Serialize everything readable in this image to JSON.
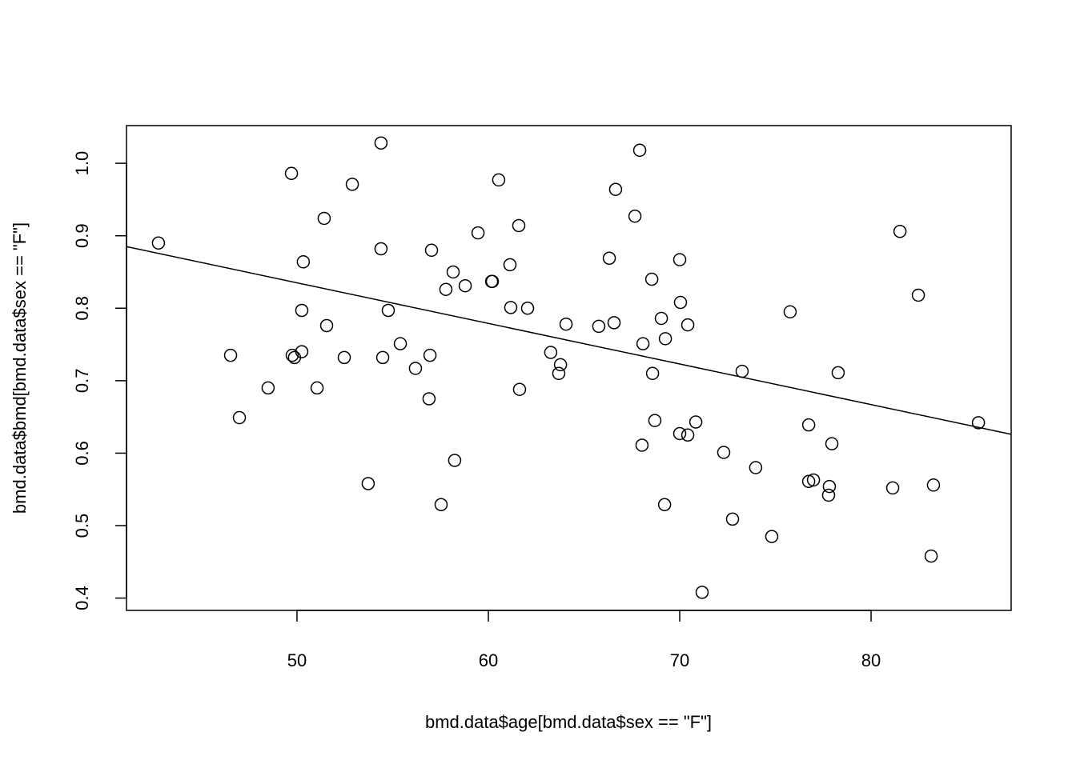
{
  "chart_data": {
    "type": "scatter",
    "title": "",
    "xlabel": "bmd.data$age[bmd.data$sex == \"F\"]",
    "ylabel": "bmd.data$bmd[bmd.data$sex == \"F\"]",
    "xlim": [
      41.09,
      87.32
    ],
    "ylim": [
      0.383,
      1.052
    ],
    "xticks": [
      50,
      60,
      70,
      80
    ],
    "xtick_labels": [
      "50",
      "60",
      "70",
      "80"
    ],
    "yticks": [
      0.4,
      0.5,
      0.6,
      0.7,
      0.8,
      0.9,
      1.0
    ],
    "ytick_labels": [
      "0.4",
      "0.5",
      "0.6",
      "0.7",
      "0.8",
      "0.9",
      "1.0"
    ],
    "grid": false,
    "marker": "open-circle",
    "regression_line": {
      "x": [
        41.09,
        87.32
      ],
      "y": [
        0.885,
        0.626
      ]
    },
    "points": [
      [
        42.76,
        0.89
      ],
      [
        46.53,
        0.735
      ],
      [
        46.99,
        0.649
      ],
      [
        48.49,
        0.69
      ],
      [
        49.71,
        0.986
      ],
      [
        49.75,
        0.735
      ],
      [
        49.87,
        0.732
      ],
      [
        50.25,
        0.74
      ],
      [
        50.25,
        0.797
      ],
      [
        50.33,
        0.864
      ],
      [
        51.05,
        0.69
      ],
      [
        51.42,
        0.924
      ],
      [
        51.55,
        0.776
      ],
      [
        52.47,
        0.732
      ],
      [
        52.89,
        0.971
      ],
      [
        53.72,
        0.558
      ],
      [
        54.39,
        1.028
      ],
      [
        54.39,
        0.882
      ],
      [
        54.48,
        0.732
      ],
      [
        54.77,
        0.797
      ],
      [
        55.4,
        0.751
      ],
      [
        56.19,
        0.717
      ],
      [
        56.9,
        0.675
      ],
      [
        56.95,
        0.735
      ],
      [
        57.03,
        0.88
      ],
      [
        57.53,
        0.529
      ],
      [
        57.78,
        0.826
      ],
      [
        58.16,
        0.85
      ],
      [
        58.24,
        0.59
      ],
      [
        58.79,
        0.831
      ],
      [
        59.46,
        0.904
      ],
      [
        60.17,
        0.837
      ],
      [
        60.21,
        0.837
      ],
      [
        60.54,
        0.977
      ],
      [
        61.13,
        0.86
      ],
      [
        61.17,
        0.801
      ],
      [
        61.59,
        0.914
      ],
      [
        61.63,
        0.688
      ],
      [
        62.05,
        0.8
      ],
      [
        63.26,
        0.739
      ],
      [
        63.68,
        0.71
      ],
      [
        63.77,
        0.722
      ],
      [
        64.06,
        0.778
      ],
      [
        65.77,
        0.775
      ],
      [
        66.32,
        0.869
      ],
      [
        66.57,
        0.78
      ],
      [
        66.65,
        0.964
      ],
      [
        67.66,
        0.927
      ],
      [
        67.91,
        1.018
      ],
      [
        68.03,
        0.611
      ],
      [
        68.08,
        0.751
      ],
      [
        68.58,
        0.71
      ],
      [
        68.54,
        0.84
      ],
      [
        68.7,
        0.645
      ],
      [
        69.04,
        0.786
      ],
      [
        69.21,
        0.529
      ],
      [
        69.25,
        0.758
      ],
      [
        70.0,
        0.867
      ],
      [
        70.04,
        0.808
      ],
      [
        70.0,
        0.627
      ],
      [
        70.42,
        0.625
      ],
      [
        70.42,
        0.777
      ],
      [
        70.84,
        0.643
      ],
      [
        71.17,
        0.408
      ],
      [
        72.3,
        0.601
      ],
      [
        72.76,
        0.509
      ],
      [
        73.26,
        0.713
      ],
      [
        73.97,
        0.58
      ],
      [
        74.81,
        0.485
      ],
      [
        75.77,
        0.795
      ],
      [
        76.74,
        0.639
      ],
      [
        76.74,
        0.561
      ],
      [
        76.99,
        0.563
      ],
      [
        77.82,
        0.554
      ],
      [
        77.78,
        0.542
      ],
      [
        77.95,
        0.613
      ],
      [
        78.28,
        0.711
      ],
      [
        81.13,
        0.552
      ],
      [
        81.51,
        0.906
      ],
      [
        82.47,
        0.818
      ],
      [
        83.14,
        0.458
      ],
      [
        83.26,
        0.556
      ],
      [
        85.61,
        0.642
      ]
    ]
  }
}
